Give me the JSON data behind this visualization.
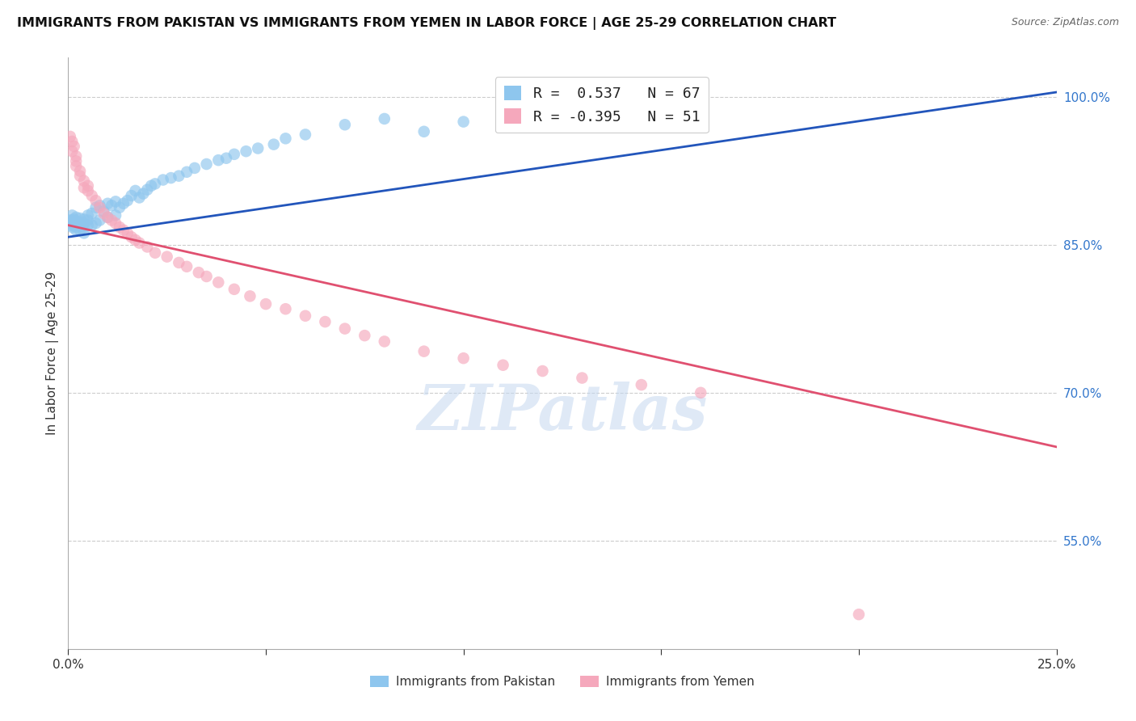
{
  "title": "IMMIGRANTS FROM PAKISTAN VS IMMIGRANTS FROM YEMEN IN LABOR FORCE | AGE 25-29 CORRELATION CHART",
  "source": "Source: ZipAtlas.com",
  "ylabel": "In Labor Force | Age 25-29",
  "xlim": [
    0.0,
    0.25
  ],
  "ylim": [
    0.44,
    1.04
  ],
  "ytick_vals_right": [
    1.0,
    0.85,
    0.7,
    0.55
  ],
  "ytick_labels_right": [
    "100.0%",
    "85.0%",
    "70.0%",
    "55.0%"
  ],
  "pakistan_color": "#8EC6EE",
  "yemen_color": "#F5A8BC",
  "pakistan_line_color": "#2255BB",
  "yemen_line_color": "#E05070",
  "legend_header_pakistan": "Immigrants from Pakistan",
  "legend_header_yemen": "Immigrants from Yemen",
  "pakistan_x": [
    0.0005,
    0.0005,
    0.001,
    0.001,
    0.001,
    0.001,
    0.0015,
    0.0015,
    0.002,
    0.002,
    0.002,
    0.002,
    0.002,
    0.003,
    0.003,
    0.003,
    0.003,
    0.004,
    0.004,
    0.004,
    0.004,
    0.005,
    0.005,
    0.005,
    0.006,
    0.006,
    0.007,
    0.007,
    0.008,
    0.008,
    0.009,
    0.01,
    0.01,
    0.011,
    0.012,
    0.012,
    0.013,
    0.014,
    0.015,
    0.016,
    0.017,
    0.018,
    0.019,
    0.02,
    0.021,
    0.022,
    0.024,
    0.026,
    0.028,
    0.03,
    0.032,
    0.035,
    0.038,
    0.04,
    0.042,
    0.045,
    0.048,
    0.052,
    0.055,
    0.06,
    0.07,
    0.08,
    0.09,
    0.1,
    0.115,
    0.13,
    0.145
  ],
  "pakistan_y": [
    0.87,
    0.875,
    0.88,
    0.875,
    0.872,
    0.868,
    0.876,
    0.87,
    0.878,
    0.874,
    0.871,
    0.868,
    0.865,
    0.877,
    0.873,
    0.869,
    0.865,
    0.876,
    0.872,
    0.868,
    0.862,
    0.88,
    0.875,
    0.87,
    0.882,
    0.87,
    0.888,
    0.872,
    0.89,
    0.875,
    0.884,
    0.892,
    0.878,
    0.89,
    0.894,
    0.88,
    0.888,
    0.892,
    0.895,
    0.9,
    0.905,
    0.898,
    0.902,
    0.906,
    0.91,
    0.912,
    0.916,
    0.918,
    0.92,
    0.924,
    0.928,
    0.932,
    0.936,
    0.938,
    0.942,
    0.945,
    0.948,
    0.952,
    0.958,
    0.962,
    0.972,
    0.978,
    0.965,
    0.975,
    0.982,
    0.988,
    0.992
  ],
  "yemen_x": [
    0.0005,
    0.001,
    0.001,
    0.0015,
    0.002,
    0.002,
    0.002,
    0.003,
    0.003,
    0.004,
    0.004,
    0.005,
    0.005,
    0.006,
    0.007,
    0.008,
    0.009,
    0.01,
    0.011,
    0.012,
    0.013,
    0.014,
    0.015,
    0.016,
    0.017,
    0.018,
    0.02,
    0.022,
    0.025,
    0.028,
    0.03,
    0.033,
    0.035,
    0.038,
    0.042,
    0.046,
    0.05,
    0.055,
    0.06,
    0.065,
    0.07,
    0.075,
    0.08,
    0.09,
    0.1,
    0.11,
    0.12,
    0.13,
    0.145,
    0.16,
    0.2
  ],
  "yemen_y": [
    0.96,
    0.955,
    0.945,
    0.95,
    0.94,
    0.935,
    0.93,
    0.925,
    0.92,
    0.915,
    0.908,
    0.91,
    0.905,
    0.9,
    0.895,
    0.888,
    0.882,
    0.878,
    0.875,
    0.872,
    0.868,
    0.865,
    0.862,
    0.858,
    0.855,
    0.852,
    0.848,
    0.842,
    0.838,
    0.832,
    0.828,
    0.822,
    0.818,
    0.812,
    0.805,
    0.798,
    0.79,
    0.785,
    0.778,
    0.772,
    0.765,
    0.758,
    0.752,
    0.742,
    0.735,
    0.728,
    0.722,
    0.715,
    0.708,
    0.7,
    0.475
  ],
  "pk_line_x0": 0.0,
  "pk_line_y0": 0.858,
  "pk_line_x1": 0.25,
  "pk_line_y1": 1.005,
  "ye_line_x0": 0.0,
  "ye_line_y0": 0.87,
  "ye_line_x1": 0.25,
  "ye_line_y1": 0.645
}
